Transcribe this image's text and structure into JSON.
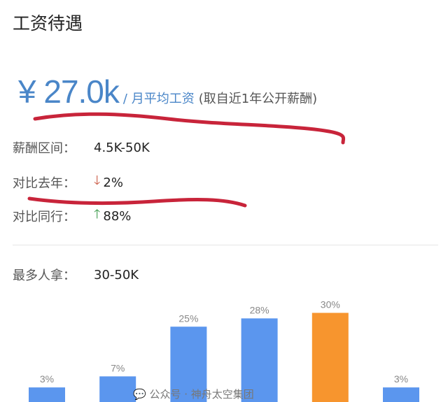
{
  "title": "工资待遇",
  "average": {
    "value": "¥ 27.0k",
    "unit": "/ 月平均工资",
    "note": "(取自近1年公开薪酬)"
  },
  "salary_range": {
    "label": "薪酬区间：",
    "value": "4.5K-50K"
  },
  "vs_last_year": {
    "label": "对比去年：",
    "direction": "down",
    "icon": "arrow-down-icon",
    "value": "2%",
    "color": "#c9553f"
  },
  "vs_peers": {
    "label": "对比同行：",
    "direction": "up",
    "icon": "arrow-up-icon",
    "value": "88%",
    "color": "#3a9a4a"
  },
  "most_common": {
    "label": "最多人拿：",
    "value": "30-50K"
  },
  "watermark": "公众号 · 神舟太空集团",
  "chart_data": {
    "type": "bar",
    "values": [
      3,
      7,
      25,
      28,
      30,
      3
    ],
    "data_labels": [
      "3%",
      "7%",
      "25%",
      "28%",
      "30%",
      "3%"
    ],
    "colors": {
      "default": "#5b96ee",
      "highlight": "#f7952e"
    },
    "highlight_index": 4
  }
}
